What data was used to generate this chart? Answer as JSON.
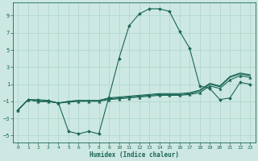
{
  "xlabel": "Humidex (Indice chaleur)",
  "background_color": "#cde8e2",
  "grid_color": "#b0d8cf",
  "line_color": "#1a6655",
  "xlim": [
    -0.5,
    23.5
  ],
  "ylim": [
    -5.8,
    10.5
  ],
  "yticks": [
    -5,
    -3,
    -1,
    1,
    3,
    5,
    7,
    9
  ],
  "xticks": [
    0,
    1,
    2,
    3,
    4,
    5,
    6,
    7,
    8,
    9,
    10,
    11,
    12,
    13,
    14,
    15,
    16,
    17,
    18,
    19,
    20,
    21,
    22,
    23
  ],
  "series": [
    {
      "x": [
        0,
        1,
        2,
        3,
        4,
        5,
        6,
        7,
        8,
        9,
        10,
        11,
        12,
        13,
        14,
        15,
        16,
        17,
        18,
        19,
        20,
        21,
        22,
        23
      ],
      "y": [
        -2.0,
        -0.8,
        -0.8,
        -0.9,
        -1.2,
        -4.5,
        -4.8,
        -4.5,
        -4.8,
        -0.5,
        4.0,
        7.8,
        9.2,
        9.8,
        9.8,
        9.5,
        7.2,
        5.2,
        0.8,
        0.5,
        -0.8,
        -0.6,
        1.2,
        1.0
      ],
      "marker": "D",
      "markersize": 2.0,
      "linewidth": 0.8
    },
    {
      "x": [
        0,
        1,
        2,
        3,
        4,
        5,
        6,
        7,
        8,
        9,
        10,
        11,
        12,
        13,
        14,
        15,
        16,
        17,
        18,
        19,
        20,
        21,
        22,
        23
      ],
      "y": [
        -2.0,
        -0.8,
        -1.0,
        -1.0,
        -1.2,
        -1.1,
        -1.0,
        -1.0,
        -1.0,
        -0.8,
        -0.7,
        -0.6,
        -0.5,
        -0.4,
        -0.3,
        -0.3,
        -0.3,
        -0.2,
        0.0,
        0.8,
        0.5,
        1.5,
        2.0,
        1.8
      ],
      "marker": "^",
      "markersize": 2.5,
      "linewidth": 0.8
    },
    {
      "x": [
        0,
        1,
        2,
        3,
        4,
        5,
        6,
        7,
        8,
        9,
        10,
        11,
        12,
        13,
        14,
        15,
        16,
        17,
        18,
        19,
        20,
        21,
        22,
        23
      ],
      "y": [
        -2.0,
        -0.8,
        -1.0,
        -1.0,
        -1.2,
        -1.0,
        -0.9,
        -0.9,
        -0.9,
        -0.7,
        -0.6,
        -0.5,
        -0.4,
        -0.3,
        -0.2,
        -0.2,
        -0.2,
        -0.1,
        0.2,
        1.0,
        0.7,
        1.8,
        2.2,
        2.0
      ],
      "marker": null,
      "markersize": 0,
      "linewidth": 0.8
    },
    {
      "x": [
        0,
        1,
        2,
        3,
        4,
        5,
        6,
        7,
        8,
        9,
        10,
        11,
        12,
        13,
        14,
        15,
        16,
        17,
        18,
        19,
        20,
        21,
        22,
        23
      ],
      "y": [
        -2.0,
        -0.8,
        -1.0,
        -1.0,
        -1.2,
        -1.0,
        -0.9,
        -0.9,
        -0.9,
        -0.6,
        -0.5,
        -0.4,
        -0.3,
        -0.2,
        -0.1,
        -0.1,
        -0.1,
        0.0,
        0.3,
        1.1,
        0.8,
        1.9,
        2.3,
        2.1
      ],
      "marker": null,
      "markersize": 0,
      "linewidth": 0.8
    }
  ],
  "figsize": [
    3.2,
    2.0
  ],
  "dpi": 100
}
